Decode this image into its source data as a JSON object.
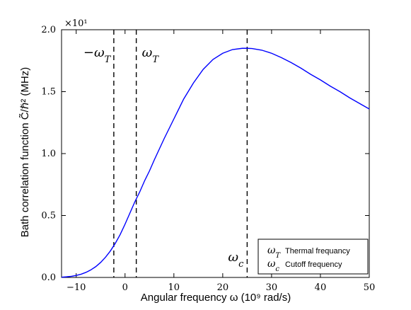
{
  "chart_data": {
    "type": "line",
    "xlabel": "Angular frequency ω (10⁹ rad/s)",
    "ylabel": "Bath correlation function C̃/ℏ² (MHz)",
    "title": "",
    "xlim": [
      -13,
      50
    ],
    "ylim": [
      0.0,
      2.0
    ],
    "y_multiplier": "×10¹",
    "x_ticks": [
      -10,
      0,
      10,
      20,
      30,
      40,
      50
    ],
    "y_ticks": [
      0.0,
      0.5,
      1.0,
      1.5,
      2.0
    ],
    "x_tick_labels": [
      "−10",
      "0",
      "10",
      "20",
      "30",
      "40",
      "50"
    ],
    "y_tick_labels": [
      "0.0",
      "0.5",
      "1.0",
      "1.5",
      "2.0"
    ],
    "grid": false,
    "series": [
      {
        "color": "#0000ff",
        "x": [
          -13,
          -12,
          -11,
          -10,
          -9,
          -8,
          -7,
          -6,
          -5,
          -4,
          -3,
          -2,
          -1,
          0,
          1,
          2,
          3,
          4,
          5,
          6,
          8,
          10,
          12,
          14,
          16,
          18,
          20,
          22,
          24,
          25,
          26,
          28,
          30,
          32,
          34,
          36,
          38,
          40,
          42,
          44,
          46,
          48,
          50
        ],
        "y": [
          0.002,
          0.005,
          0.009,
          0.016,
          0.026,
          0.041,
          0.061,
          0.087,
          0.121,
          0.163,
          0.214,
          0.275,
          0.346,
          0.43,
          0.52,
          0.61,
          0.69,
          0.78,
          0.86,
          0.95,
          1.12,
          1.28,
          1.44,
          1.57,
          1.68,
          1.76,
          1.81,
          1.84,
          1.85,
          1.85,
          1.848,
          1.835,
          1.81,
          1.775,
          1.735,
          1.69,
          1.64,
          1.595,
          1.545,
          1.5,
          1.45,
          1.405,
          1.36
        ]
      }
    ],
    "vlines": [
      {
        "x": -2.3,
        "label": "−ω_T",
        "style": "dashed",
        "color": "#000000"
      },
      {
        "x": 2.3,
        "label": "ω_T",
        "style": "dashed",
        "color": "#000000"
      },
      {
        "x": 25.0,
        "label": "ω_c",
        "style": "dashed",
        "color": "#000000"
      }
    ],
    "legend": {
      "placement": "bottom-right",
      "entries": [
        {
          "symbol": "ω_T",
          "label": "Thermal frequancy"
        },
        {
          "symbol": "ω_c",
          "label": "Cutoff frequency"
        }
      ]
    }
  }
}
